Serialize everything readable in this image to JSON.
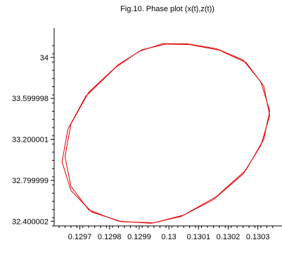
{
  "chart_data": {
    "type": "line",
    "title": "Fig.10. Phase plot (x(t),z(t))",
    "xlabel": "",
    "ylabel": "",
    "xlim": [
      0.12963,
      0.13036
    ],
    "ylim": [
      32.354,
      34.163
    ],
    "x_ticks": [
      {
        "value": 0.1297,
        "label": "0.1297"
      },
      {
        "value": 0.1298,
        "label": "0.1298"
      },
      {
        "value": 0.1299,
        "label": "0.1299"
      },
      {
        "value": 0.13,
        "label": "0.13"
      },
      {
        "value": 0.1301,
        "label": "0.1301"
      },
      {
        "value": 0.1302,
        "label": "0.1302"
      },
      {
        "value": 0.1303,
        "label": "0.1303"
      }
    ],
    "y_ticks": [
      {
        "value": 34.0,
        "label": "34"
      },
      {
        "value": 33.599998,
        "label": "33.599998"
      },
      {
        "value": 33.200001,
        "label": "33.200001"
      },
      {
        "value": 32.799999,
        "label": "32.799999"
      },
      {
        "value": 32.400002,
        "label": "32.400002"
      }
    ],
    "series_color": "#e00000",
    "series": [
      {
        "x": [
          0.12998,
          0.13006,
          0.13016,
          0.13025,
          0.13031,
          0.13034,
          0.13032,
          0.13026,
          0.13016,
          0.13005,
          0.12995,
          0.12984,
          0.12974,
          0.12967,
          0.12964,
          0.12966,
          0.12972,
          0.12982,
          0.1299,
          0.12998
        ],
        "y": [
          34.134,
          34.133,
          34.085,
          33.975,
          33.76,
          33.48,
          33.2,
          32.9,
          32.64,
          32.46,
          32.385,
          32.395,
          32.49,
          32.7,
          32.98,
          33.3,
          33.62,
          33.9,
          34.06,
          34.134
        ]
      },
      {
        "x": [
          0.12999,
          0.13007,
          0.13017,
          0.13026,
          0.13032,
          0.13034,
          0.13031,
          0.13025,
          0.13015,
          0.13004,
          0.12994,
          0.12983,
          0.12973,
          0.12967,
          0.12965,
          0.12967,
          0.12973,
          0.12983,
          0.12991,
          0.12999
        ],
        "y": [
          34.13,
          34.125,
          34.07,
          33.95,
          33.72,
          33.43,
          33.14,
          32.86,
          32.61,
          32.445,
          32.38,
          32.4,
          32.51,
          32.74,
          33.03,
          33.35,
          33.66,
          33.93,
          34.075,
          34.13
        ]
      }
    ]
  }
}
